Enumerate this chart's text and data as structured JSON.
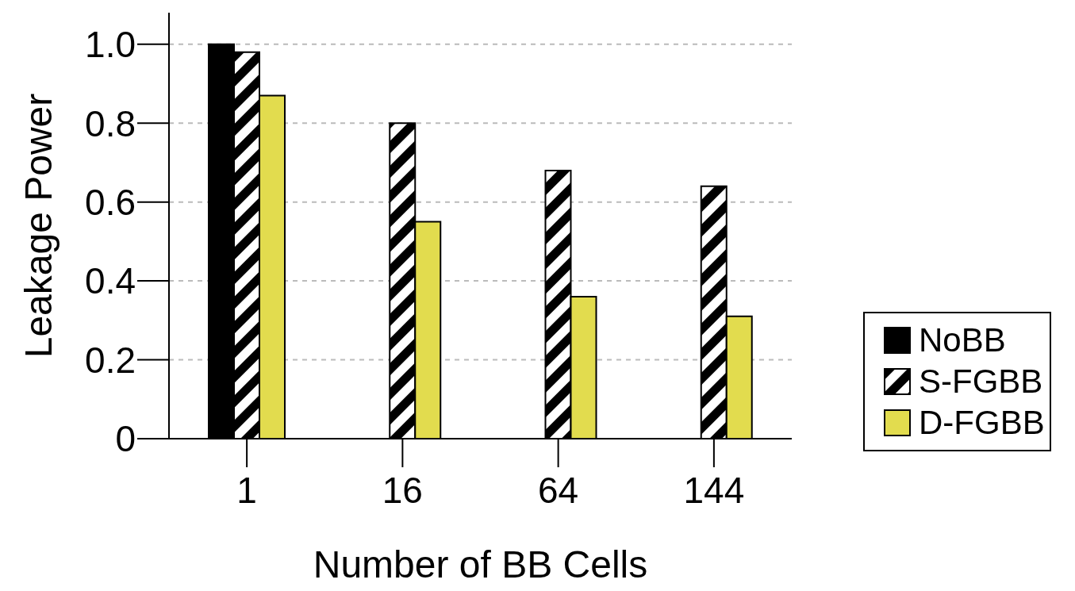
{
  "chart_data": {
    "type": "bar",
    "xlabel": "Number of BB Cells",
    "ylabel": "Leakage Power",
    "categories": [
      "1",
      "16",
      "64",
      "144"
    ],
    "series": [
      {
        "name": "NoBB",
        "color": "#000000",
        "values": [
          1.0,
          null,
          null,
          null
        ]
      },
      {
        "name": "S-FGBB",
        "color": "#000000",
        "values": [
          0.98,
          0.8,
          0.68,
          0.64
        ]
      },
      {
        "name": "D-FGBB",
        "color": "#e2dc4e",
        "values": [
          0.87,
          0.55,
          0.36,
          0.31
        ]
      }
    ],
    "ylim": [
      0,
      1.08
    ],
    "yticks": [
      0,
      0.2,
      0.4,
      0.6,
      0.8,
      {
        "value": 1,
        "label": "1.0"
      }
    ],
    "grid": "y",
    "legend": "right"
  }
}
